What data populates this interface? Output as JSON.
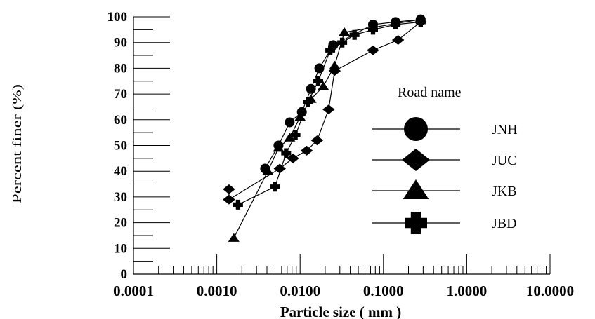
{
  "chart_data": {
    "type": "line",
    "title": "",
    "xlabel": "Particle size ( mm )",
    "ylabel": "Percent finer (%)",
    "x_scale": "log",
    "xlim": [
      0.0001,
      10
    ],
    "ylim": [
      0,
      100
    ],
    "x_ticks": [
      0.0001,
      0.001,
      0.01,
      0.1,
      1,
      10
    ],
    "x_tick_labels": [
      "0.0001",
      "0.0010",
      "0.0100",
      "0.1000",
      "1.0000",
      "10.0000"
    ],
    "y_ticks": [
      0,
      10,
      20,
      30,
      40,
      50,
      60,
      70,
      80,
      90,
      100
    ],
    "y_tick_labels": [
      "0",
      "10",
      "20",
      "30",
      "40",
      "50",
      "60",
      "70",
      "80",
      "90",
      "100"
    ],
    "grid": false,
    "legend": {
      "title": "Road name",
      "position": "right"
    },
    "series": [
      {
        "name": "JNH",
        "marker": "circle",
        "points": [
          {
            "x": 0.0038,
            "y": 41
          },
          {
            "x": 0.0055,
            "y": 50
          },
          {
            "x": 0.0075,
            "y": 59
          },
          {
            "x": 0.0105,
            "y": 63
          },
          {
            "x": 0.0135,
            "y": 72
          },
          {
            "x": 0.017,
            "y": 80
          },
          {
            "x": 0.025,
            "y": 89
          },
          {
            "x": 0.075,
            "y": 97
          },
          {
            "x": 0.14,
            "y": 98
          },
          {
            "x": 0.28,
            "y": 99
          }
        ]
      },
      {
        "name": "JUC",
        "marker": "diamond",
        "points": [
          {
            "x": 0.0014,
            "y": 33
          },
          {
            "x": 0.0014,
            "y": 29
          },
          {
            "x": 0.0057,
            "y": 41
          },
          {
            "x": 0.0082,
            "y": 45
          },
          {
            "x": 0.012,
            "y": 48
          },
          {
            "x": 0.016,
            "y": 52
          },
          {
            "x": 0.022,
            "y": 64
          },
          {
            "x": 0.026,
            "y": 79
          },
          {
            "x": 0.075,
            "y": 87
          },
          {
            "x": 0.15,
            "y": 91
          },
          {
            "x": 0.28,
            "y": 98
          }
        ]
      },
      {
        "name": "JKB",
        "marker": "triangle",
        "points": [
          {
            "x": 0.0016,
            "y": 14
          },
          {
            "x": 0.0041,
            "y": 40
          },
          {
            "x": 0.0055,
            "y": 49
          },
          {
            "x": 0.0075,
            "y": 53
          },
          {
            "x": 0.01,
            "y": 61
          },
          {
            "x": 0.0135,
            "y": 68
          },
          {
            "x": 0.019,
            "y": 73
          },
          {
            "x": 0.026,
            "y": 81
          },
          {
            "x": 0.034,
            "y": 94
          },
          {
            "x": 0.28,
            "y": 99
          }
        ]
      },
      {
        "name": "JBD",
        "marker": "plus",
        "points": [
          {
            "x": 0.0018,
            "y": 27
          },
          {
            "x": 0.005,
            "y": 34
          },
          {
            "x": 0.0068,
            "y": 47
          },
          {
            "x": 0.0088,
            "y": 54
          },
          {
            "x": 0.0125,
            "y": 67
          },
          {
            "x": 0.0165,
            "y": 75
          },
          {
            "x": 0.023,
            "y": 87
          },
          {
            "x": 0.032,
            "y": 90
          },
          {
            "x": 0.045,
            "y": 93
          },
          {
            "x": 0.075,
            "y": 95
          },
          {
            "x": 0.14,
            "y": 97
          },
          {
            "x": 0.28,
            "y": 98
          }
        ]
      }
    ]
  },
  "colors": {
    "background": "#ffffff",
    "ink": "#000000"
  }
}
